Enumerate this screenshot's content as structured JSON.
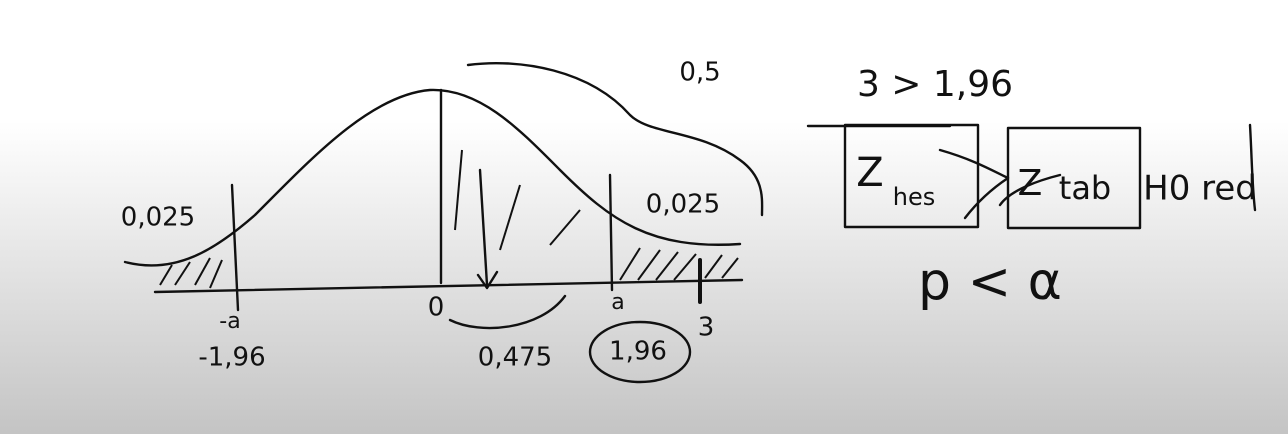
{
  "top_notes": {
    "half_area": "0,5",
    "comparison": "3 > 1,96"
  },
  "tails": {
    "left_area": "0,025",
    "right_area": "0,025"
  },
  "axis_labels": {
    "left_critical_symbol": "-a",
    "left_critical_value": "-1,96",
    "center": "0",
    "right_critical_symbol": "a",
    "statistic": "3",
    "middle_area": "0,475",
    "right_critical_value": "1,96"
  },
  "boxes": [
    {
      "symbol": "Z",
      "subscript": "hes"
    },
    {
      "symbol": "Z",
      "subscript": "tab"
    }
  ],
  "conclusion": "H0 red",
  "rule": "p < α"
}
